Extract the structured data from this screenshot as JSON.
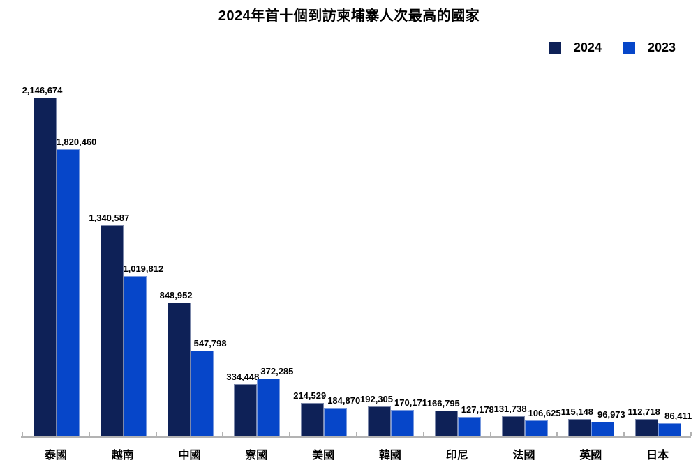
{
  "title": "2024年首十個到訪柬埔寨人次最高的國家",
  "legend": {
    "items": [
      {
        "label": "2024",
        "color": "#0e2157"
      },
      {
        "label": "2023",
        "color": "#0646c9"
      }
    ]
  },
  "chart_data": {
    "type": "bar",
    "title": "2024年首十個到訪柬埔寨人次最高的國家",
    "categories": [
      "泰國",
      "越南",
      "中國",
      "寮國",
      "美國",
      "韓國",
      "印尼",
      "法國",
      "英國",
      "日本"
    ],
    "series": [
      {
        "name": "2024",
        "color": "#0e2157",
        "values": [
          2146674,
          1340587,
          848952,
          334448,
          214529,
          192305,
          166795,
          131738,
          115148,
          112718
        ],
        "labels": [
          "2,146,674",
          "1,340,587",
          "848,952",
          "334,448",
          "214,529",
          "192,305",
          "166,795",
          "131,738",
          "115,148",
          "112,718"
        ]
      },
      {
        "name": "2023",
        "color": "#0646c9",
        "values": [
          1820460,
          1019812,
          547798,
          372285,
          184870,
          170171,
          127178,
          106625,
          96973,
          86411
        ],
        "labels": [
          "1,820,460",
          "1,019,812",
          "547,798",
          "372,285",
          "184,870",
          "170,171",
          "127,178",
          "106,625",
          "96,973",
          "86,411"
        ]
      }
    ],
    "xlabel": "",
    "ylabel": "",
    "ylim": [
      0,
      2200000
    ],
    "grid": false,
    "y_axis_visible": false,
    "legend_position": "top-right",
    "axis_color": "#b3b3b3",
    "data_labels": "outside-end"
  }
}
